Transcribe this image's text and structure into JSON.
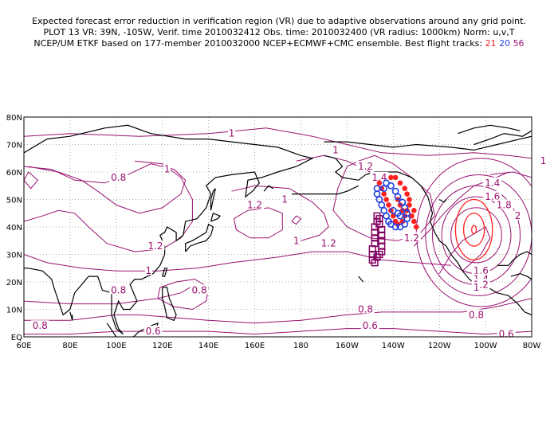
{
  "header": {
    "line1": "Expected forecast error reduction in verification region (VR) due to adaptive observations around any grid point.",
    "line2": "PLOT 13 VR: 39N, -105W, Verif. time 2010032412 Obs. time: 2010032400 (VR radius: 1000km) Norm: u,v,T",
    "line3_prefix": "NCEP/UM ETKF based on 177-member 2010032000 NCEP+ECMWF+CMC ensemble. Best flight tracks: ",
    "track_a": "21",
    "track_b": "20",
    "track_c": "56"
  },
  "colors": {
    "contour": "#9a1070",
    "vr_circle": "#ff2020",
    "track_red": "#ff2020",
    "track_blue": "#2040e0",
    "track_purple": "#800060",
    "coast": "#000000",
    "grid": "#888888"
  },
  "axes": {
    "lat_labels": [
      "80N",
      "70N",
      "60N",
      "50N",
      "40N",
      "30N",
      "20N",
      "10N",
      "EQ"
    ],
    "lon_labels": [
      "60E",
      "80E",
      "100E",
      "120E",
      "140E",
      "160E",
      "180",
      "160W",
      "140W",
      "120W",
      "100W",
      "80W"
    ]
  },
  "contour_labels": [
    {
      "text": "1",
      "lon": 150,
      "lat": 74
    },
    {
      "text": "1",
      "lon": 195,
      "lat": 68
    },
    {
      "text": "1",
      "lon": 285,
      "lat": 64
    },
    {
      "text": "0.8",
      "lon": 101,
      "lat": 58
    },
    {
      "text": "1",
      "lon": 122,
      "lat": 61
    },
    {
      "text": "1.2",
      "lon": 208,
      "lat": 62
    },
    {
      "text": "1.4",
      "lon": 214,
      "lat": 58
    },
    {
      "text": "1.2",
      "lon": 160,
      "lat": 48
    },
    {
      "text": "1",
      "lon": 173,
      "lat": 50
    },
    {
      "text": "1.4",
      "lon": 263,
      "lat": 56
    },
    {
      "text": "1.6",
      "lon": 263,
      "lat": 51
    },
    {
      "text": "1.8",
      "lon": 268,
      "lat": 48
    },
    {
      "text": "2",
      "lon": 274,
      "lat": 44
    },
    {
      "text": "1.2",
      "lon": 117,
      "lat": 33
    },
    {
      "text": "1.2",
      "lon": 192,
      "lat": 34
    },
    {
      "text": "1",
      "lon": 178,
      "lat": 35
    },
    {
      "text": "1.2",
      "lon": 228,
      "lat": 36
    },
    {
      "text": "1",
      "lon": 114,
      "lat": 24
    },
    {
      "text": "0.8",
      "lon": 101,
      "lat": 17
    },
    {
      "text": "0.8",
      "lon": 136,
      "lat": 17
    },
    {
      "text": "1.6",
      "lon": 258,
      "lat": 24
    },
    {
      "text": "1.4",
      "lon": 258,
      "lat": 21
    },
    {
      "text": "1.2",
      "lon": 258,
      "lat": 19
    },
    {
      "text": "1",
      "lon": 256,
      "lat": 18
    },
    {
      "text": "0.8",
      "lon": 208,
      "lat": 10
    },
    {
      "text": "0.8",
      "lon": 256,
      "lat": 8
    },
    {
      "text": "0.8",
      "lon": 67,
      "lat": 4
    },
    {
      "text": "0.6",
      "lon": 116,
      "lat": 2
    },
    {
      "text": "0.6",
      "lon": 210,
      "lat": 4
    },
    {
      "text": "0.6",
      "lon": 269,
      "lat": 1
    }
  ],
  "flight_tracks": [
    {
      "id": "21",
      "marker": "circle-filled",
      "color": "#ff2020",
      "points": [
        [
          214,
          56
        ],
        [
          215,
          54
        ],
        [
          216,
          52
        ],
        [
          217,
          50
        ],
        [
          218,
          48
        ],
        [
          219,
          46
        ],
        [
          220,
          44
        ],
        [
          221,
          42
        ],
        [
          222,
          41
        ],
        [
          224,
          42
        ],
        [
          225,
          44
        ],
        [
          226,
          46
        ],
        [
          227,
          48
        ],
        [
          227,
          50
        ],
        [
          226,
          52
        ],
        [
          225,
          54
        ],
        [
          223,
          56
        ],
        [
          221,
          58
        ],
        [
          219,
          58
        ],
        [
          222,
          50
        ],
        [
          223,
          48
        ],
        [
          224,
          46
        ],
        [
          228,
          44
        ],
        [
          229,
          42
        ],
        [
          230,
          40
        ],
        [
          229,
          46
        ]
      ]
    },
    {
      "id": "20",
      "marker": "circle-open",
      "color": "#2040e0",
      "points": [
        [
          213,
          54
        ],
        [
          213,
          52
        ],
        [
          214,
          50
        ],
        [
          215,
          48
        ],
        [
          216,
          46
        ],
        [
          217,
          44
        ],
        [
          218,
          42
        ],
        [
          219,
          41
        ],
        [
          221,
          40
        ],
        [
          223,
          40
        ],
        [
          225,
          41
        ],
        [
          226,
          43
        ],
        [
          226,
          45
        ],
        [
          225,
          47
        ],
        [
          224,
          49
        ],
        [
          222,
          51
        ],
        [
          221,
          53
        ],
        [
          219,
          55
        ],
        [
          217,
          56
        ],
        [
          216,
          54
        ],
        [
          220,
          46
        ],
        [
          222,
          45
        ],
        [
          223,
          44
        ]
      ]
    },
    {
      "id": "56",
      "marker": "square-open",
      "color": "#800060",
      "points": [
        [
          211,
          28
        ],
        [
          211,
          30
        ],
        [
          211,
          32
        ],
        [
          212,
          34
        ],
        [
          212,
          36
        ],
        [
          212,
          38
        ],
        [
          212,
          40
        ],
        [
          213,
          42
        ],
        [
          213,
          44
        ],
        [
          214,
          43
        ],
        [
          214,
          41
        ],
        [
          215,
          39
        ],
        [
          215,
          37
        ],
        [
          215,
          35
        ],
        [
          215,
          33
        ],
        [
          215,
          31
        ],
        [
          214,
          30
        ],
        [
          213,
          29
        ],
        [
          212,
          27
        ]
      ]
    }
  ]
}
